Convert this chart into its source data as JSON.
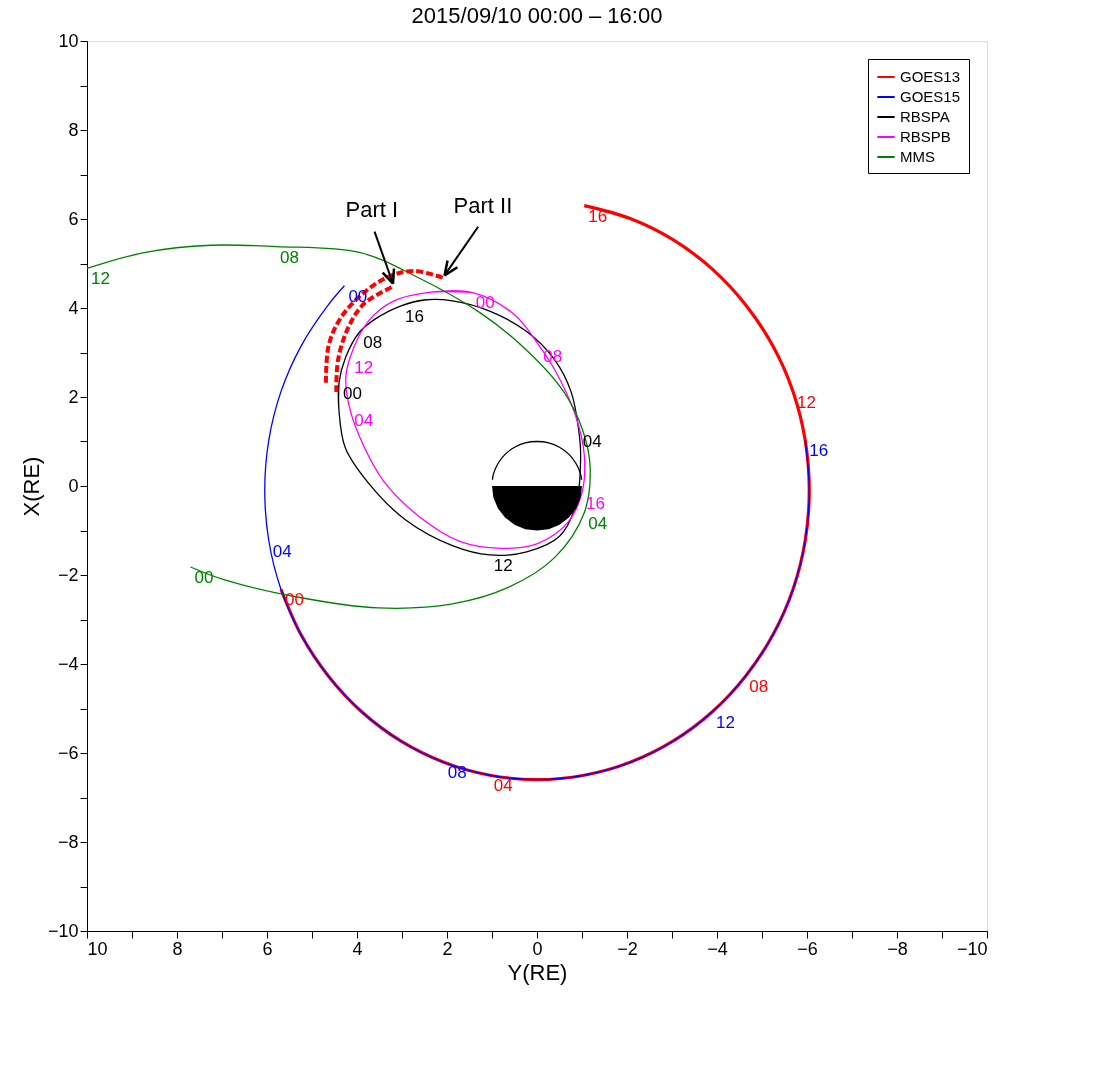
{
  "chart_data": {
    "type": "line",
    "title": "2015/09/10   00:00 – 16:00",
    "xlabel": "Y(RE)",
    "ylabel": "X(RE)",
    "xlim": [
      10,
      -10
    ],
    "ylim": [
      -10,
      10
    ],
    "xticks": [
      10,
      {
        "value": 9,
        "label": null
      },
      8,
      {
        "value": 7,
        "label": null
      },
      6,
      {
        "value": 5,
        "label": null
      },
      4,
      {
        "value": 3,
        "label": null
      },
      2,
      {
        "value": 1,
        "label": null
      },
      0,
      {
        "value": -1,
        "label": null
      },
      {
        "value": -2,
        "label": "−2"
      },
      {
        "value": -3,
        "label": null
      },
      {
        "value": -4,
        "label": "−4"
      },
      {
        "value": -5,
        "label": null
      },
      {
        "value": -6,
        "label": "−6"
      },
      {
        "value": -7,
        "label": null
      },
      {
        "value": -8,
        "label": "−8"
      },
      {
        "value": -9,
        "label": null
      },
      {
        "value": -10,
        "label": "−10"
      }
    ],
    "yticks": [
      {
        "value": -10,
        "label": "−10"
      },
      {
        "value": -9,
        "label": null
      },
      {
        "value": -8,
        "label": "−8"
      },
      {
        "value": -7,
        "label": null
      },
      {
        "value": -6,
        "label": "−6"
      },
      {
        "value": -5,
        "label": null
      },
      {
        "value": -4,
        "label": "−4"
      },
      {
        "value": -3,
        "label": null
      },
      {
        "value": -2,
        "label": "−2"
      },
      {
        "value": -1,
        "label": null
      },
      0,
      {
        "value": 1,
        "label": null
      },
      2,
      {
        "value": 3,
        "label": null
      },
      4,
      {
        "value": 5,
        "label": null
      },
      6,
      {
        "value": 7,
        "label": null
      },
      8,
      {
        "value": 9,
        "label": null
      },
      10
    ],
    "grid": false,
    "legend": "top right",
    "marker": "none",
    "line_style": "solid",
    "series": [
      {
        "name": "GOES13",
        "color": "#ff0000",
        "x": [
          5.69,
          5.24,
          4.63,
          3.89,
          3.03,
          2.07,
          1.05,
          0,
          -1.05,
          -2.07,
          -3.03,
          -3.89,
          -4.63,
          -5.24,
          -5.69,
          -5.96,
          -6.05,
          -5.96,
          -5.69,
          -5.24,
          -4.63,
          -3.89,
          -3.03,
          -2.07,
          -1.05
        ],
        "values": [
          -2.32,
          -3.35,
          -4.28,
          -5.08,
          -5.73,
          -6.21,
          -6.5,
          -6.6,
          -6.5,
          -6.21,
          -5.73,
          -5.08,
          -4.28,
          -3.35,
          -2.32,
          -1.23,
          -0.1,
          1.03,
          2.12,
          3.15,
          4.08,
          4.88,
          5.53,
          6.01,
          6.3
        ]
      },
      {
        "name": "GOES15",
        "color": "#0000ff",
        "x": [
          4.28,
          4.63,
          5.24,
          5.69,
          5.96,
          6.05,
          5.96,
          5.69,
          5.24,
          4.63,
          3.89,
          3.03,
          2.07,
          1.05,
          0,
          -1.05,
          -2.07,
          -3.03,
          -3.89,
          -4.63,
          -5.24,
          -5.69,
          -5.96,
          -6.05,
          -5.96
        ],
        "values": [
          4.5,
          4.08,
          3.15,
          2.12,
          1.03,
          -0.1,
          -1.23,
          -2.32,
          -3.35,
          -4.28,
          -5.08,
          -5.73,
          -6.21,
          -6.5,
          -6.6,
          -6.5,
          -6.21,
          -5.73,
          -5.08,
          -4.28,
          -3.35,
          -2.32,
          -1.23,
          -0.1,
          1.03
        ]
      },
      {
        "name": "RBSPA",
        "color": "#000000",
        "x": [
          4.4,
          4.4,
          4.26,
          3.74,
          2.91,
          1.88,
          1.05,
          0.23,
          -0.5,
          -0.87,
          -0.97,
          -0.93,
          -0.76,
          -0.39,
          0.23,
          1.05,
          1.88,
          2.5,
          3.02,
          3.6,
          3.95,
          4.25,
          4.4,
          4.4,
          4.26,
          3.74,
          2.91,
          1.88,
          1.05,
          0.23,
          -0.5,
          -0.87,
          -0.97,
          -0.93,
          -0.76,
          -0.39,
          0.23,
          1.05,
          1.88,
          2.5,
          3.02
        ],
        "values": [
          2.32,
          1.69,
          0.86,
          0.06,
          -0.77,
          -1.34,
          -1.55,
          -1.48,
          -1.13,
          -0.4,
          0.65,
          1.23,
          2.11,
          2.84,
          3.47,
          3.93,
          4.16,
          4.18,
          4.05,
          3.75,
          3.45,
          2.9,
          2.32,
          1.69,
          0.86,
          0.06,
          -0.77,
          -1.34,
          -1.55,
          -1.48,
          -1.13,
          -0.4,
          0.65,
          1.23,
          2.11,
          2.84,
          3.47,
          3.93,
          4.16,
          4.18,
          4.05
        ]
      },
      {
        "name": "RBSPB",
        "color": "#ff00ff",
        "x": [
          1.45,
          2.4,
          3.2,
          3.75,
          4.15,
          4.25,
          4.15,
          3.85,
          3.4,
          2.6,
          1.7,
          0.8,
          0,
          -0.7,
          -1.0,
          -1.05,
          -0.85,
          -0.4,
          -0.05,
          0.5,
          1.45,
          2.4,
          3.2,
          3.75,
          4.15,
          4.25,
          4.15,
          3.85,
          3.4,
          2.6,
          1.7,
          0.8,
          0,
          -0.7,
          -1.0
        ],
        "values": [
          4.35,
          4.35,
          4.15,
          3.7,
          2.9,
          2.4,
          1.7,
          0.9,
          0.1,
          -0.7,
          -1.25,
          -1.4,
          -1.3,
          -0.8,
          -0.15,
          0.7,
          1.6,
          2.6,
          3.15,
          3.85,
          4.35,
          4.35,
          4.15,
          3.7,
          2.9,
          2.4,
          1.7,
          0.9,
          0.1,
          -0.7,
          -1.25,
          -1.4,
          -1.3,
          -0.8,
          -0.15
        ]
      },
      {
        "name": "MMS",
        "color": "#008000",
        "x": [
          7.7,
          6.94,
          5.3,
          3.53,
          1.88,
          0.64,
          -0.39,
          -1.05,
          -1.18,
          -1.01,
          -0.6,
          0.23,
          1.26,
          2.71,
          3.95,
          5.8,
          7.25,
          8.7,
          10.0
        ],
        "values": [
          -1.82,
          -2.11,
          -2.5,
          -2.74,
          -2.65,
          -2.28,
          -1.61,
          -0.6,
          0.44,
          1.27,
          2.11,
          3.05,
          3.89,
          4.72,
          5.25,
          5.38,
          5.41,
          5.25,
          4.89
        ]
      },
      {
        "color": "#ff0000",
        "line_style": "dashed",
        "x": [
          4.46,
          4.42,
          4.19,
          3.84,
          3.18
        ],
        "values": [
          2.11,
          2.84,
          3.57,
          4.1,
          4.49
        ]
      },
      {
        "color": "#ff0000",
        "line_style": "dashed",
        "x": [
          4.69,
          4.63,
          4.36,
          3.84,
          3.26,
          2.71,
          2.09
        ],
        "values": [
          2.32,
          3.16,
          3.78,
          4.35,
          4.72,
          4.83,
          4.68
        ]
      },
      {
        "type": "area",
        "color": "#000000",
        "x": [
          1,
          0.97,
          0.87,
          0.71,
          0.5,
          0.26,
          0,
          -0.26,
          -0.5,
          -0.71,
          -0.87,
          -0.97,
          -1
        ],
        "values": [
          0,
          -0.26,
          -0.5,
          -0.71,
          -0.87,
          -0.97,
          -1,
          -0.97,
          -0.87,
          -0.71,
          -0.5,
          -0.26,
          0
        ]
      },
      {
        "color": "#000000",
        "x": [
          0.99,
          0.97,
          0.87,
          0.71,
          0.5,
          0.26,
          0,
          -0.26,
          -0.5,
          -0.71,
          -0.87,
          -0.97,
          -0.99
        ],
        "values": [
          0.14,
          0.26,
          0.5,
          0.71,
          0.87,
          0.97,
          1,
          0.97,
          0.87,
          0.71,
          0.5,
          0.26,
          0.14
        ]
      }
    ],
    "annotations": [
      {
        "text": "Part I",
        "x": 3.18,
        "y": 4.49
      },
      {
        "text": "Part II",
        "x": 2.09,
        "y": 4.68
      },
      {
        "text": "00",
        "x": 5.69,
        "y": -2.32
      },
      {
        "text": "04",
        "x": 1.05,
        "y": -6.5
      },
      {
        "text": "08",
        "x": -4.63,
        "y": -4.28
      },
      {
        "text": "12",
        "x": -5.69,
        "y": 2.12
      },
      {
        "text": "16",
        "x": -1.05,
        "y": 6.3
      },
      {
        "text": "00",
        "x": 4.28,
        "y": 4.5
      },
      {
        "text": "04",
        "x": 5.96,
        "y": -1.23
      },
      {
        "text": "08",
        "x": 2.07,
        "y": -6.21
      },
      {
        "text": "12",
        "x": -3.89,
        "y": -5.08
      },
      {
        "text": "16",
        "x": -5.96,
        "y": 1.03
      },
      {
        "text": "00",
        "x": 4.4,
        "y": 2.32
      },
      {
        "text": "04",
        "x": -0.93,
        "y": 1.23
      },
      {
        "text": "08",
        "x": 3.95,
        "y": 3.45
      },
      {
        "text": "12",
        "x": 1.05,
        "y": -1.55
      },
      {
        "text": "16",
        "x": 3.02,
        "y": 4.05
      },
      {
        "text": "00",
        "x": 1.45,
        "y": 4.35
      },
      {
        "text": "04",
        "x": 4.15,
        "y": 1.7
      },
      {
        "text": "08",
        "x": -0.05,
        "y": 3.15
      },
      {
        "text": "12",
        "x": 4.15,
        "y": 2.9
      },
      {
        "text": "16",
        "x": -1.0,
        "y": -0.15
      },
      {
        "text": "00",
        "x": 7.7,
        "y": -1.82
      },
      {
        "text": "04",
        "x": -1.05,
        "y": -0.6
      },
      {
        "text": "08",
        "x": 5.8,
        "y": 5.38
      },
      {
        "text": "12",
        "x": 10.0,
        "y": 4.89
      }
    ]
  }
}
